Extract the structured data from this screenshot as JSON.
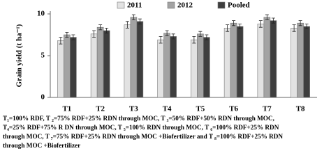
{
  "chart_data": {
    "type": "bar",
    "ylabel": "Grain yield (t ha⁻¹)",
    "categories": [
      "T1",
      "T2",
      "T3",
      "T4",
      "T5",
      "T6",
      "T7",
      "T8"
    ],
    "series": [
      {
        "name": "2011",
        "color": "#e2e2e2",
        "values": [
          6.8,
          7.6,
          8.7,
          6.9,
          6.9,
          8.3,
          8.8,
          8.3
        ],
        "errors": [
          0.4,
          0.4,
          0.4,
          0.4,
          0.4,
          0.4,
          0.4,
          0.4
        ]
      },
      {
        "name": "2012",
        "color": "#a3a3a3",
        "values": [
          7.5,
          8.4,
          9.6,
          7.7,
          7.6,
          8.9,
          9.6,
          8.9
        ],
        "errors": [
          0.3,
          0.3,
          0.3,
          0.3,
          0.3,
          0.3,
          0.3,
          0.3
        ]
      },
      {
        "name": "Pooled",
        "color": "#3e3e3e",
        "values": [
          7.2,
          8.0,
          9.1,
          7.3,
          7.2,
          8.5,
          9.2,
          8.5
        ],
        "errors": [
          0.3,
          0.3,
          0.3,
          0.3,
          0.3,
          0.3,
          0.3,
          0.3
        ]
      }
    ],
    "ylim": [
      0,
      10
    ],
    "yticks": [
      0,
      5,
      10
    ],
    "grid": false,
    "legend": "top"
  },
  "caption_lines": [
    "T₁=100% RDF, T ₂=75% RDF+25% RDN through MOC, T ₃=50% RDF+50% RDN through MOC,",
    "T₄=25% RDF+75% R DN through MOC, T ₅=100% RDN through MOC, T ₆=100% RDF+25% RDN",
    "through MOC, T ₇=75% RDF+25% RDN through MOC +Biofertilizer and T ₈=100% RDF+25% RDN",
    "through MOC +Biofertilizer"
  ]
}
